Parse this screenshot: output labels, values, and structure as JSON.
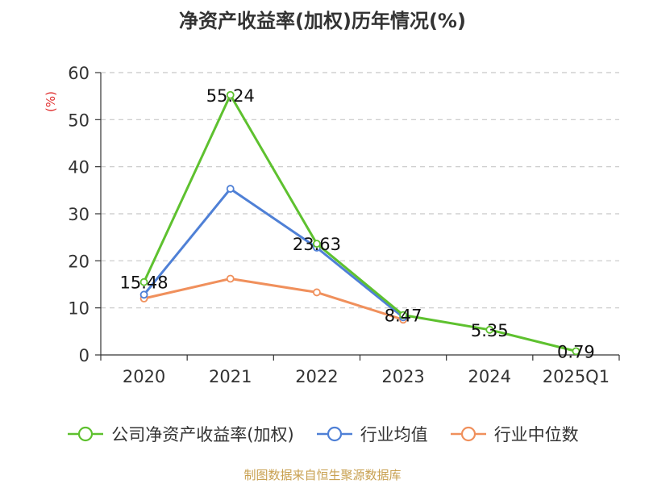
{
  "chart_data": {
    "type": "line",
    "title": "净资产收益率(加权)历年情况(%)",
    "ylabel": "(%)",
    "categories": [
      "2020",
      "2021",
      "2022",
      "2023",
      "2024",
      "2025Q1"
    ],
    "ylim": [
      0,
      60
    ],
    "yticks": [
      0,
      10,
      20,
      30,
      40,
      50,
      60
    ],
    "grid": true,
    "legend_position": "bottom",
    "series": [
      {
        "name": "公司净资产收益率(加权)",
        "color": "#5ec12f",
        "values": [
          15.48,
          55.24,
          23.63,
          8.47,
          5.35,
          0.79
        ],
        "labels": [
          "15.48",
          "55.24",
          "23.63",
          "8.47",
          "5.35",
          "0.79"
        ]
      },
      {
        "name": "行业均值",
        "color": "#4f80d6",
        "values": [
          12.8,
          35.3,
          22.8,
          8.0,
          null,
          null
        ]
      },
      {
        "name": "行业中位数",
        "color": "#f0905c",
        "values": [
          12.0,
          16.2,
          13.3,
          7.5,
          null,
          null
        ]
      }
    ],
    "source": "制图数据来自恒生聚源数据库"
  }
}
